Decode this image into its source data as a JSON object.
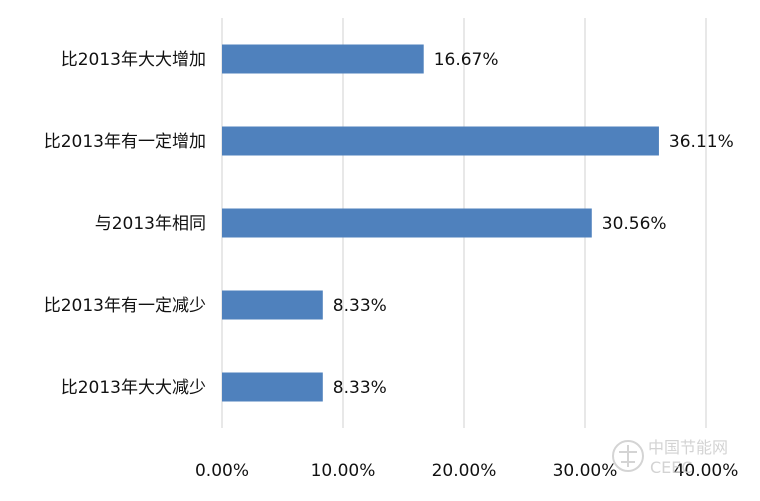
{
  "chart_data": {
    "type": "bar",
    "orientation": "horizontal",
    "categories": [
      "比2013年大大增加",
      "比2013年有一定增加",
      "与2013年相同",
      "比2013年有一定减少",
      "比2013年大大减少"
    ],
    "values": [
      16.67,
      36.11,
      30.56,
      8.33,
      8.33
    ],
    "value_labels": [
      "16.67%",
      "36.11%",
      "30.56%",
      "8.33%",
      "8.33%"
    ],
    "xlim": [
      0,
      40
    ],
    "x_ticks": [
      0,
      10,
      20,
      30,
      40
    ],
    "x_tick_labels": [
      "0.00%",
      "10.00%",
      "20.00%",
      "30.00%",
      "40.00%"
    ],
    "grid": "vertical",
    "legend": "none",
    "title": "",
    "xlabel": "",
    "ylabel": "",
    "colors": {
      "bar": "#4F81BD",
      "grid": "#D9D9D9",
      "text": "#111111"
    }
  },
  "watermark": {
    "text_top": "中国节能网",
    "text_bottom": "CEEC",
    "icon": "ceec-logo-icon"
  }
}
